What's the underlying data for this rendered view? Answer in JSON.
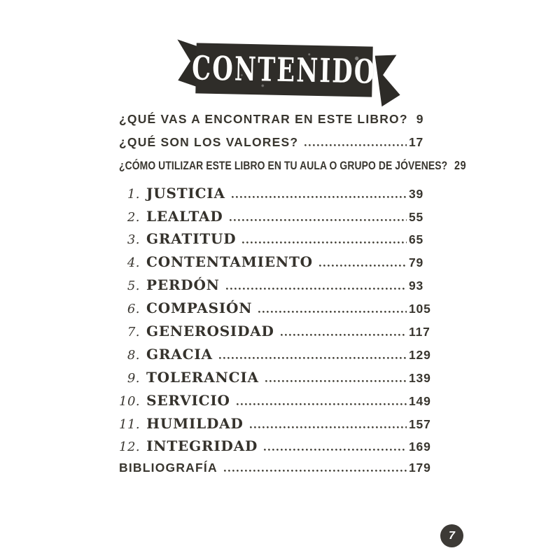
{
  "banner": {
    "title": "CONTENIDO"
  },
  "toc": {
    "entries": [
      {
        "num": "",
        "title": "¿QUÉ VAS A ENCONTRAR EN ESTE LIBRO?",
        "page": "9"
      },
      {
        "num": "",
        "title": "¿QUÉ SON LOS VALORES?",
        "page": "17"
      },
      {
        "num": "",
        "title": "¿CÓMO UTILIZAR ESTE LIBRO EN TU AULA O GRUPO DE JÓVENES?",
        "page": "29"
      },
      {
        "num": "1.",
        "title": "JUSTICIA",
        "page": "39"
      },
      {
        "num": "2.",
        "title": "LEALTAD",
        "page": "55"
      },
      {
        "num": "3.",
        "title": "GRATITUD",
        "page": "65"
      },
      {
        "num": "4.",
        "title": "CONTENTAMIENTO",
        "page": "79"
      },
      {
        "num": "5.",
        "title": "PERDÓN",
        "page": "93"
      },
      {
        "num": "6.",
        "title": "COMPASIÓN",
        "page": "105"
      },
      {
        "num": "7.",
        "title": "GENEROSIDAD",
        "page": "117"
      },
      {
        "num": "8.",
        "title": "GRACIA",
        "page": "129"
      },
      {
        "num": "9.",
        "title": "TOLERANCIA",
        "page": "139"
      },
      {
        "num": "10.",
        "title": "SERVICIO",
        "page": "149"
      },
      {
        "num": "11.",
        "title": "HUMILDAD",
        "page": "157"
      },
      {
        "num": "12.",
        "title": "INTEGRIDAD",
        "page": "169"
      },
      {
        "num": "",
        "title": "BIBLIOGRAFÍA",
        "page": "179"
      }
    ]
  },
  "footer": {
    "page": "7"
  },
  "colors": {
    "paper": "#ffffff",
    "ink": "#39362f",
    "banner": "#2f2d29",
    "banner_text": "#fdfdfb",
    "badge": "#3d3a36",
    "badge_text": "#ffffff"
  }
}
